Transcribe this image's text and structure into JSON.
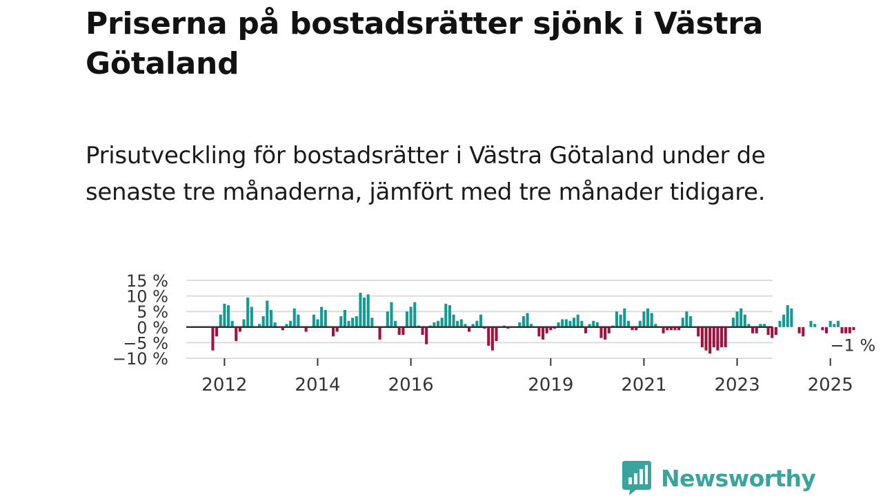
{
  "title": "Priserna på bostadsrätter sjönk i Västra Götaland",
  "subtitle": "Prisutveckling för bostadsrätter i Västra Götaland under de senaste tre månaderna, jämfört med tre månader tidigare.",
  "brand": {
    "name": "Newsworthy",
    "color": "#3aa39e"
  },
  "colors": {
    "positive": "#139a92",
    "negative": "#a3123f",
    "grid": "#dcdcdc",
    "zero": "#333333"
  },
  "chart_data": {
    "type": "bar",
    "title": "Prisutveckling för bostadsrätter i Västra Götaland",
    "xlabel": "",
    "ylabel": "",
    "ylim": [
      -10,
      15
    ],
    "y_ticks": [
      15,
      10,
      5,
      0,
      -5,
      -10
    ],
    "y_tick_labels": [
      "15 %",
      "10 %",
      "5 %",
      "0 %",
      "−5 %",
      "−10 %"
    ],
    "x_ticks": [
      {
        "label": "2012",
        "index": 3
      },
      {
        "label": "2014",
        "index": 27
      },
      {
        "label": "2016",
        "index": 51
      },
      {
        "label": "2019",
        "index": 87
      },
      {
        "label": "2021",
        "index": 111
      },
      {
        "label": "2023",
        "index": 135
      },
      {
        "label": "2025",
        "index": 159
      }
    ],
    "start": "2011-10",
    "last_value_label": "−1 %",
    "values": [
      -7.5,
      -3.0,
      4.0,
      7.5,
      7.0,
      2.0,
      -4.5,
      -1.5,
      2.5,
      9.5,
      6.5,
      0.0,
      1.0,
      3.5,
      8.5,
      5.5,
      1.5,
      0.0,
      -1.0,
      1.0,
      2.0,
      6.0,
      4.0,
      0.0,
      -1.5,
      0.0,
      4.0,
      2.5,
      6.5,
      5.5,
      0.0,
      -3.0,
      -1.5,
      3.5,
      5.5,
      2.0,
      3.0,
      3.5,
      11.0,
      9.5,
      10.5,
      3.0,
      0.0,
      -4.0,
      0.0,
      5.0,
      8.0,
      2.0,
      -2.5,
      -2.5,
      5.0,
      6.5,
      8.0,
      0.5,
      -2.5,
      -5.5,
      0.5,
      1.5,
      2.0,
      3.0,
      7.5,
      7.0,
      4.0,
      2.0,
      2.5,
      1.0,
      -1.5,
      1.0,
      2.0,
      4.0,
      -0.5,
      -6.0,
      -7.5,
      -4.5,
      0.0,
      0.5,
      -0.5,
      0.0,
      0.0,
      1.5,
      3.5,
      4.5,
      1.0,
      0.0,
      -3.0,
      -4.0,
      -2.0,
      -1.0,
      -0.5,
      1.5,
      2.5,
      2.5,
      2.0,
      3.0,
      4.0,
      2.0,
      -2.0,
      1.0,
      2.0,
      1.5,
      -3.5,
      -4.0,
      -2.0,
      0.5,
      5.0,
      4.0,
      6.0,
      2.0,
      -1.0,
      -1.0,
      2.0,
      5.0,
      6.0,
      4.5,
      1.0,
      0.0,
      -2.0,
      -1.0,
      -1.0,
      -1.0,
      -1.0,
      3.0,
      5.0,
      3.5,
      0.0,
      -3.0,
      -6.5,
      -7.5,
      -8.5,
      -6.5,
      -7.5,
      -6.5,
      -6.5,
      0.0,
      3.0,
      5.0,
      6.0,
      4.0,
      1.0,
      -2.0,
      -2.0,
      1.0,
      1.0,
      -2.5,
      -3.5,
      -2.5,
      2.0,
      4.0,
      7.0,
      6.0,
      0.0,
      -2.0,
      -3.0,
      0.0,
      2.0,
      1.0,
      0.0,
      -1.0,
      -2.0,
      2.0,
      1.0,
      2.0,
      -2.0,
      -2.0,
      -2.0,
      -1.0
    ]
  }
}
